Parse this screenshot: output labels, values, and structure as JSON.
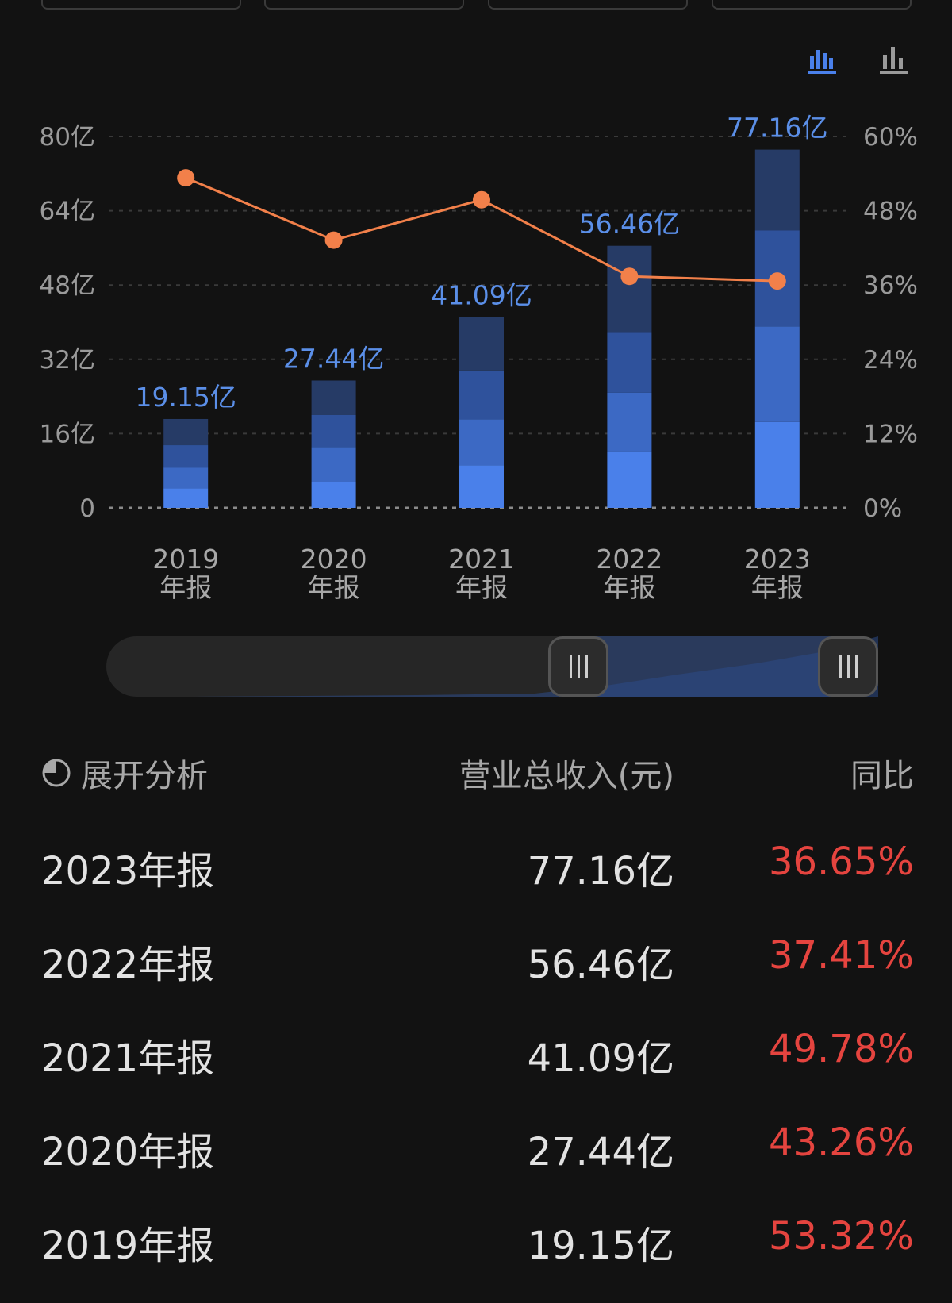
{
  "colors": {
    "background": "#121212",
    "bar_segments": [
      "#4a80ea",
      "#3c69c4",
      "#2f529c",
      "#263b66"
    ],
    "line": "#f2804a",
    "value_label": "#5b8fe8",
    "yoy_text": "#e5443f",
    "toggle_active": "#4a80ea",
    "toggle_inactive": "#9a9a9a"
  },
  "icons": {
    "toggle_bar": "bar-chart-icon",
    "toggle_stacked": "bar-chart-icon",
    "analyze": "pie-chart-icon",
    "slider_grip": "grip-lines-icon"
  },
  "chart_data": {
    "type": "bar",
    "categories": [
      "2019\n年报",
      "2020\n年报",
      "2021\n年报",
      "2022\n年报",
      "2023\n年报"
    ],
    "series": [
      {
        "type": "bar",
        "stacked_quarters": [
          [
            4.2,
            4.5,
            4.8,
            5.65
          ],
          [
            5.5,
            7.6,
            6.9,
            7.44
          ],
          [
            9.2,
            9.9,
            10.5,
            11.49
          ],
          [
            12.2,
            12.6,
            12.9,
            18.76
          ],
          [
            18.5,
            20.6,
            20.7,
            17.36
          ]
        ],
        "values": [
          19.15,
          27.44,
          41.09,
          56.46,
          77.16
        ],
        "value_labels": [
          "19.15亿",
          "27.44亿",
          "41.09亿",
          "56.46亿",
          "77.16亿"
        ]
      },
      {
        "type": "line",
        "values": [
          53.32,
          43.26,
          49.78,
          37.41,
          36.65
        ]
      }
    ],
    "y_left": {
      "ticks": [
        "0",
        "16亿",
        "32亿",
        "48亿",
        "64亿",
        "80亿"
      ],
      "range": [
        0,
        80
      ]
    },
    "y_right": {
      "ticks": [
        "0%",
        "12%",
        "24%",
        "36%",
        "48%",
        "60%"
      ],
      "range": [
        0,
        60
      ]
    },
    "grid": true
  },
  "table": {
    "header": {
      "analyze_label": "展开分析",
      "revenue_label": "营业总收入(元)",
      "yoy_label": "同比"
    },
    "rows": [
      {
        "period": "2023年报",
        "revenue": "77.16亿",
        "yoy": "36.65%"
      },
      {
        "period": "2022年报",
        "revenue": "56.46亿",
        "yoy": "37.41%"
      },
      {
        "period": "2021年报",
        "revenue": "41.09亿",
        "yoy": "49.78%"
      },
      {
        "period": "2020年报",
        "revenue": "27.44亿",
        "yoy": "43.26%"
      },
      {
        "period": "2019年报",
        "revenue": "19.15亿",
        "yoy": "53.32%"
      }
    ]
  }
}
